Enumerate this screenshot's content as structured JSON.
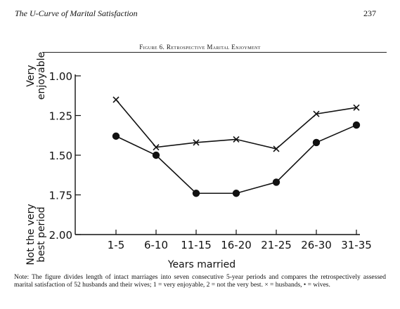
{
  "page": {
    "running_head": "The U-Curve of Marital Satisfaction",
    "page_number": "237"
  },
  "figure": {
    "title": "Figure 6. Retrospective Marital Enjoyment",
    "note": "Note: The figure divides length of intact marriages into seven consecutive 5-year periods and compares the retrospectively assessed marital satisfaction of 52 husbands and their wives; 1 = very enjoyable, 2 = not the very best. × = husbands, • = wives."
  },
  "chart_data": {
    "type": "line",
    "title": "Figure 6. Retrospective Marital Enjoyment",
    "xlabel": "Years married",
    "ylabel_top": [
      "Very",
      "enjoyable"
    ],
    "ylabel_bottom": [
      "Not the very",
      "best period"
    ],
    "categories": [
      "1-5",
      "6-10",
      "11-15",
      "16-20",
      "21-25",
      "26-30",
      "31-35"
    ],
    "yticks": [
      "1.00",
      "1.25",
      "1.50",
      "1.75",
      "2.00"
    ],
    "ylim": [
      1.0,
      2.0
    ],
    "y_inverted": true,
    "grid": false,
    "series": [
      {
        "name": "husbands",
        "marker": "x",
        "values": [
          1.15,
          1.45,
          1.42,
          1.4,
          1.46,
          1.24,
          1.2
        ]
      },
      {
        "name": "wives",
        "marker": "dot",
        "values": [
          1.38,
          1.5,
          1.74,
          1.74,
          1.67,
          1.42,
          1.31
        ]
      }
    ],
    "colors": {
      "line": "#111111"
    }
  }
}
